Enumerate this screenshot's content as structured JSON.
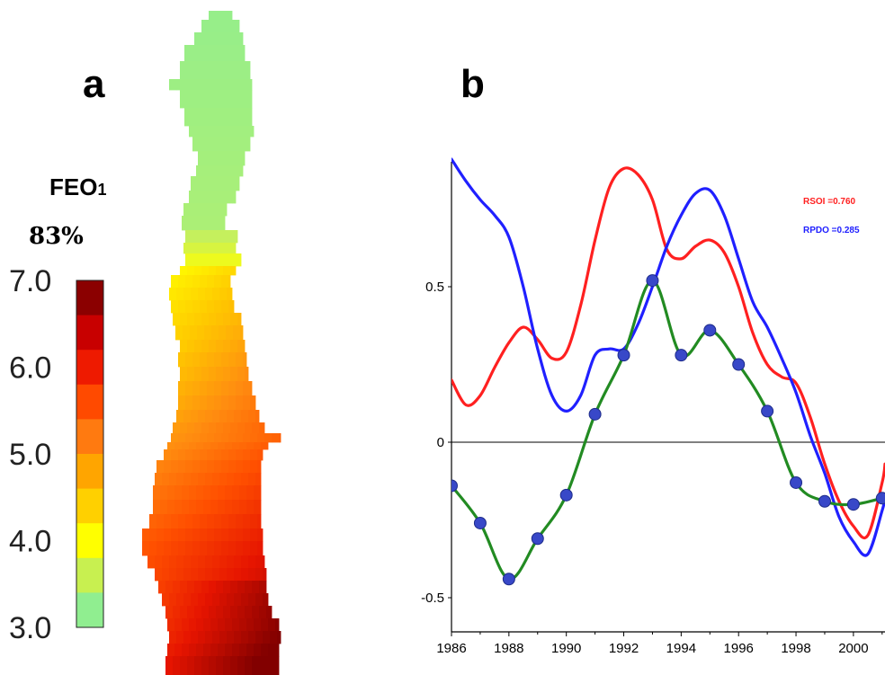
{
  "panel_a": {
    "letter": "a",
    "field_label": "FEO",
    "field_subscript": "1",
    "variance": "83%",
    "colorbar": {
      "ticks": [
        "7.0",
        "6.0",
        "5.0",
        "4.0",
        "3.0"
      ],
      "range": [
        3.0,
        7.0
      ],
      "colors": [
        "#8b0000",
        "#c80000",
        "#ee1a00",
        "#ff4a00",
        "#ff7a10",
        "#ffa500",
        "#ffd000",
        "#ffff00",
        "#c8f050",
        "#90ee90"
      ]
    }
  },
  "panel_b": {
    "letter": "b",
    "correlations": [
      {
        "text": "RSOI =0.760",
        "color": "#ff2020"
      },
      {
        "text": "RPDO =0.285",
        "color": "#2020ff"
      }
    ]
  },
  "chart_data": {
    "type": "line",
    "xlim": [
      1986,
      2001.1
    ],
    "ylim": [
      -0.6,
      0.9
    ],
    "xticks": [
      "1986",
      "1988",
      "1990",
      "1992",
      "1994",
      "1996",
      "1998",
      "2000"
    ],
    "yticks": [
      "0.5",
      "0",
      "-0.5"
    ],
    "zero_line": true,
    "grid": false,
    "series": [
      {
        "key": "soi",
        "color": "#ff2020",
        "x": [
          1986,
          1986.5,
          1987,
          1987.5,
          1988,
          1988.5,
          1989,
          1989.5,
          1990,
          1990.5,
          1991,
          1991.5,
          1992,
          1992.5,
          1993,
          1993.5,
          1994,
          1994.5,
          1995,
          1995.5,
          1996,
          1996.5,
          1997,
          1997.5,
          1998,
          1998.5,
          1999,
          1999.5,
          2000,
          2000.5,
          2001,
          2001.1
        ],
        "y": [
          0.2,
          0.12,
          0.15,
          0.24,
          0.32,
          0.37,
          0.33,
          0.27,
          0.29,
          0.44,
          0.65,
          0.82,
          0.88,
          0.86,
          0.78,
          0.62,
          0.59,
          0.63,
          0.65,
          0.61,
          0.5,
          0.35,
          0.25,
          0.21,
          0.19,
          0.08,
          -0.07,
          -0.19,
          -0.27,
          -0.3,
          -0.13,
          -0.07
        ]
      },
      {
        "key": "pdo",
        "color": "#2020ff",
        "x": [
          1986,
          1986.5,
          1987,
          1987.5,
          1988,
          1988.5,
          1989,
          1989.5,
          1990,
          1990.5,
          1991,
          1991.5,
          1992,
          1992.5,
          1993,
          1993.5,
          1994,
          1994.5,
          1995,
          1995.5,
          1996,
          1996.5,
          1997,
          1997.5,
          1998,
          1998.5,
          1999,
          1999.5,
          2000,
          2000.5,
          2001,
          2001.1
        ],
        "y": [
          0.91,
          0.84,
          0.78,
          0.73,
          0.66,
          0.5,
          0.3,
          0.15,
          0.1,
          0.15,
          0.28,
          0.3,
          0.3,
          0.38,
          0.5,
          0.63,
          0.73,
          0.8,
          0.81,
          0.73,
          0.59,
          0.45,
          0.37,
          0.27,
          0.16,
          0.02,
          -0.1,
          -0.24,
          -0.32,
          -0.36,
          -0.22,
          -0.18
        ]
      },
      {
        "key": "pc1",
        "color": "#228b22",
        "marker_color": "#3848c8",
        "x": [
          1986,
          1987,
          1988,
          1989,
          1990,
          1991,
          1992,
          1993,
          1994,
          1995,
          1996,
          1997,
          1998,
          1999,
          2000,
          2001
        ],
        "y": [
          -0.14,
          -0.26,
          -0.44,
          -0.31,
          -0.17,
          0.09,
          0.28,
          0.52,
          0.28,
          0.36,
          0.25,
          0.1,
          -0.13,
          -0.19,
          -0.2,
          -0.18
        ]
      }
    ]
  }
}
